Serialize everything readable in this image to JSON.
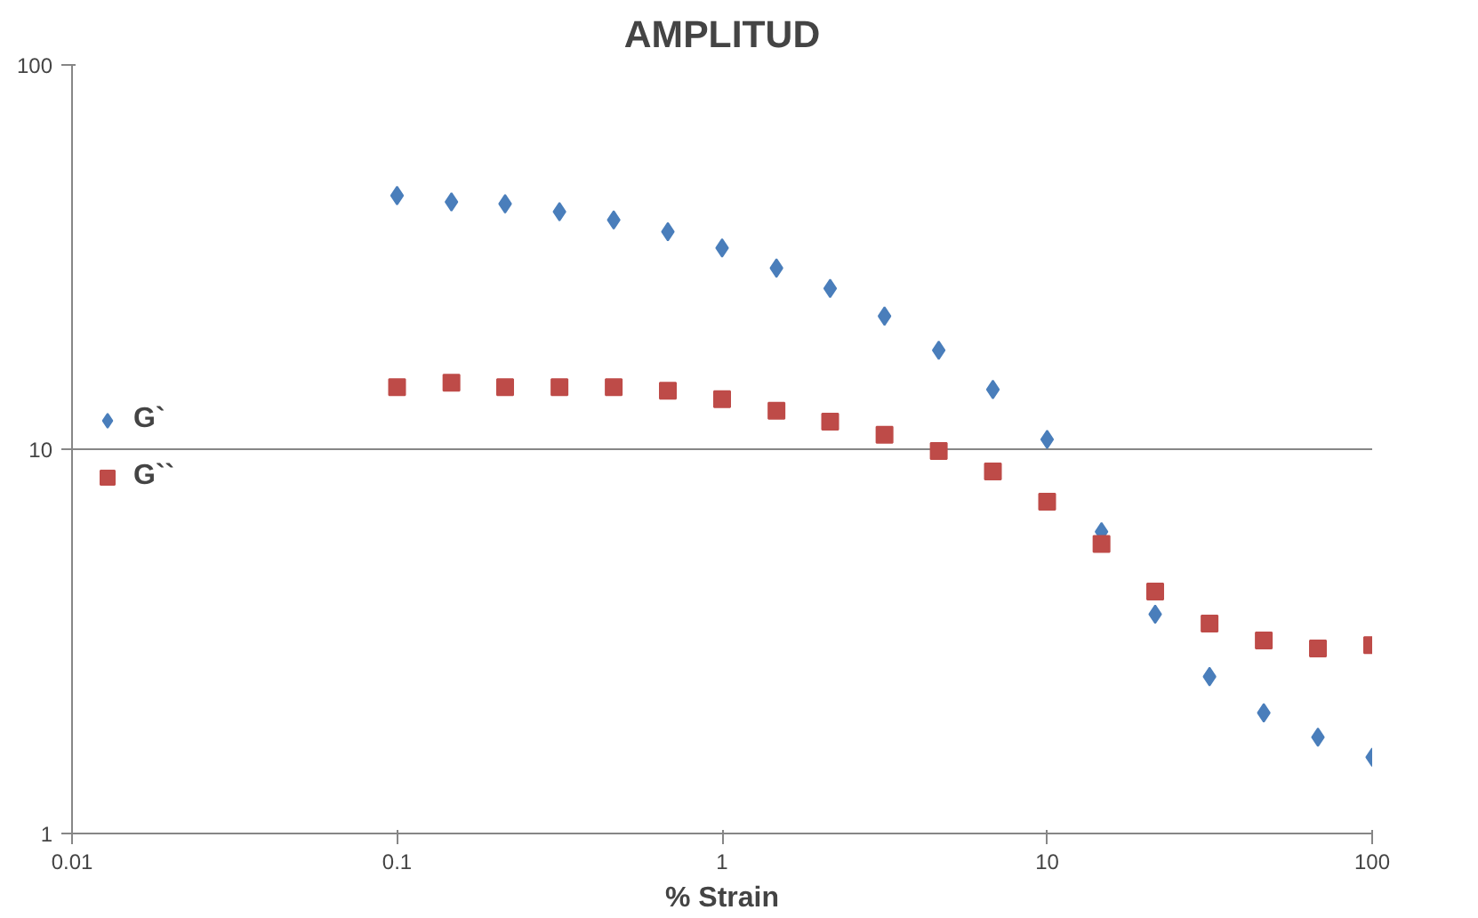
{
  "chart_data": {
    "type": "scatter",
    "title": "AMPLITUD",
    "xlabel": "% Strain",
    "log": "xy",
    "x": [
      0.1,
      0.147,
      0.215,
      0.316,
      0.464,
      0.681,
      1,
      1.47,
      2.15,
      3.16,
      4.64,
      6.81,
      10,
      14.7,
      21.5,
      31.6,
      46.4,
      68.1,
      100
    ],
    "series": [
      {
        "name": "G`",
        "color": "#4a7ebb",
        "marker": "diamond",
        "values": [
          45.7,
          44.0,
          43.5,
          41.5,
          39.5,
          36.8,
          33.4,
          29.6,
          26.2,
          22.2,
          18.1,
          14.3,
          10.6,
          6.1,
          3.72,
          2.56,
          2.06,
          1.78,
          1.58
        ]
      },
      {
        "name": "G``",
        "color": "#be4b48",
        "marker": "square",
        "values": [
          14.5,
          14.9,
          14.5,
          14.5,
          14.5,
          14.2,
          13.5,
          12.6,
          11.8,
          10.9,
          9.9,
          8.75,
          7.3,
          5.67,
          4.26,
          3.52,
          3.18,
          3.03,
          3.09
        ]
      }
    ],
    "xlim": [
      0.01,
      100
    ],
    "ylim": [
      1,
      100
    ],
    "xticks": [
      0.01,
      0.1,
      1,
      10,
      100
    ],
    "yticks": [
      1,
      10,
      100
    ],
    "grid": "y",
    "legend": "left"
  }
}
